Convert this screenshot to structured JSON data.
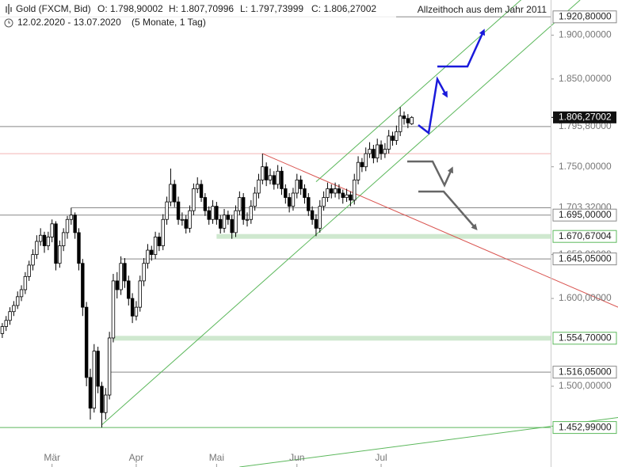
{
  "chart_data": {
    "type": "candlestick",
    "title": "Gold (FXCM, Bid)",
    "ohlc_labels": [
      "O: 1.798,90002",
      "H: 1.807,70996",
      "L: 1.797,73999",
      "C: 1.806,27002"
    ],
    "subtitle": "12.02.2020 - 13.07.2020",
    "period": "(5 Monate, 1 Tag)",
    "annotation": "Allzeithoch aus dem Jahr 2011",
    "categories": [
      null,
      null,
      null,
      null,
      null,
      null,
      null,
      null,
      null,
      null,
      null,
      null,
      null,
      "Mär",
      null,
      null,
      null,
      null,
      null,
      null,
      null,
      null,
      null,
      null,
      null,
      null,
      null,
      null,
      null,
      null,
      null,
      null,
      null,
      null,
      null,
      "Apr",
      null,
      null,
      null,
      null,
      null,
      null,
      null,
      null,
      null,
      null,
      null,
      null,
      null,
      null,
      null,
      null,
      null,
      null,
      null,
      null,
      "Mai",
      null,
      null,
      null,
      null,
      null,
      null,
      null,
      null,
      null,
      null,
      null,
      null,
      null,
      null,
      null,
      null,
      null,
      null,
      null,
      null,
      "Jun",
      null,
      null,
      null,
      null,
      null,
      null,
      null,
      null,
      null,
      null,
      null,
      null,
      null,
      null,
      null,
      null,
      null,
      null,
      null,
      null,
      null,
      "Jul",
      null,
      null,
      null,
      null,
      null,
      null,
      null,
      null
    ],
    "candles": [
      [
        1560,
        1572,
        1555,
        1568
      ],
      [
        1568,
        1580,
        1563,
        1575
      ],
      [
        1575,
        1590,
        1570,
        1585
      ],
      [
        1585,
        1597,
        1580,
        1592
      ],
      [
        1592,
        1608,
        1588,
        1602
      ],
      [
        1602,
        1615,
        1597,
        1610
      ],
      [
        1610,
        1630,
        1605,
        1625
      ],
      [
        1625,
        1643,
        1620,
        1638
      ],
      [
        1638,
        1656,
        1632,
        1650
      ],
      [
        1650,
        1672,
        1645,
        1665
      ],
      [
        1665,
        1680,
        1660,
        1672
      ],
      [
        1672,
        1676,
        1652,
        1660
      ],
      [
        1660,
        1676,
        1655,
        1670
      ],
      [
        1670,
        1690,
        1664,
        1685
      ],
      [
        1685,
        1688,
        1632,
        1640
      ],
      [
        1640,
        1666,
        1635,
        1660
      ],
      [
        1660,
        1680,
        1654,
        1675
      ],
      [
        1675,
        1694,
        1668,
        1690
      ],
      [
        1690,
        1703.32,
        1684,
        1695
      ],
      [
        1695,
        1698,
        1668,
        1675
      ],
      [
        1675,
        1680,
        1632,
        1640
      ],
      [
        1640,
        1645,
        1580,
        1590
      ],
      [
        1590,
        1596,
        1500,
        1510
      ],
      [
        1510,
        1520,
        1462,
        1475
      ],
      [
        1475,
        1548,
        1470,
        1540
      ],
      [
        1540,
        1545,
        1492,
        1500
      ],
      [
        1500,
        1505,
        1452.99,
        1470
      ],
      [
        1470,
        1498,
        1462,
        1490
      ],
      [
        1490,
        1562,
        1485,
        1555
      ],
      [
        1555,
        1628,
        1550,
        1620
      ],
      [
        1620,
        1630,
        1600,
        1610
      ],
      [
        1610,
        1648,
        1604,
        1640
      ],
      [
        1640,
        1646,
        1612,
        1620
      ],
      [
        1620,
        1626,
        1592,
        1600
      ],
      [
        1600,
        1606,
        1572,
        1580
      ],
      [
        1580,
        1597,
        1575,
        1590
      ],
      [
        1590,
        1626,
        1585,
        1620
      ],
      [
        1620,
        1646,
        1614,
        1640
      ],
      [
        1640,
        1662,
        1634,
        1655
      ],
      [
        1655,
        1660,
        1643,
        1650
      ],
      [
        1650,
        1676,
        1645,
        1670
      ],
      [
        1670,
        1675,
        1654,
        1660
      ],
      [
        1660,
        1696,
        1655,
        1690
      ],
      [
        1690,
        1716,
        1684,
        1710
      ],
      [
        1710,
        1748,
        1705,
        1730
      ],
      [
        1730,
        1735,
        1704,
        1710
      ],
      [
        1710,
        1716,
        1684,
        1690
      ],
      [
        1690,
        1698,
        1683,
        1690
      ],
      [
        1690,
        1695,
        1674,
        1680
      ],
      [
        1680,
        1706,
        1675,
        1700
      ],
      [
        1700,
        1731,
        1695,
        1725
      ],
      [
        1725,
        1738,
        1720,
        1730
      ],
      [
        1730,
        1735,
        1710,
        1715
      ],
      [
        1715,
        1720,
        1694,
        1700
      ],
      [
        1700,
        1705,
        1684,
        1690
      ],
      [
        1690,
        1712,
        1685,
        1705
      ],
      [
        1705,
        1710,
        1684,
        1690
      ],
      [
        1690,
        1695,
        1674,
        1680
      ],
      [
        1680,
        1702,
        1675,
        1695
      ],
      [
        1695,
        1700,
        1684,
        1690
      ],
      [
        1690,
        1695,
        1668,
        1675
      ],
      [
        1675,
        1706,
        1670,
        1700
      ],
      [
        1700,
        1722,
        1695,
        1715
      ],
      [
        1715,
        1720,
        1684,
        1690
      ],
      [
        1690,
        1698,
        1682,
        1690
      ],
      [
        1690,
        1712,
        1685,
        1705
      ],
      [
        1705,
        1727,
        1700,
        1720
      ],
      [
        1720,
        1742,
        1714,
        1735
      ],
      [
        1735,
        1765,
        1730,
        1750
      ],
      [
        1750,
        1755,
        1728,
        1735
      ],
      [
        1735,
        1748,
        1730,
        1740
      ],
      [
        1740,
        1745,
        1724,
        1730
      ],
      [
        1730,
        1752,
        1725,
        1745
      ],
      [
        1745,
        1750,
        1718,
        1725
      ],
      [
        1725,
        1730,
        1708,
        1715
      ],
      [
        1715,
        1720,
        1698,
        1705
      ],
      [
        1705,
        1726,
        1700,
        1720
      ],
      [
        1720,
        1742,
        1714,
        1735
      ],
      [
        1735,
        1740,
        1718,
        1725
      ],
      [
        1725,
        1730,
        1708,
        1715
      ],
      [
        1715,
        1720,
        1694,
        1700
      ],
      [
        1700,
        1705,
        1684,
        1690
      ],
      [
        1690,
        1696,
        1671,
        1680
      ],
      [
        1680,
        1712,
        1675,
        1705
      ],
      [
        1705,
        1722,
        1700,
        1715
      ],
      [
        1715,
        1732,
        1710,
        1725
      ],
      [
        1725,
        1730,
        1714,
        1720
      ],
      [
        1720,
        1732,
        1715,
        1725
      ],
      [
        1725,
        1730,
        1713,
        1720
      ],
      [
        1720,
        1724,
        1708,
        1715
      ],
      [
        1715,
        1725,
        1710,
        1718
      ],
      [
        1718,
        1722,
        1705,
        1712
      ],
      [
        1712,
        1742,
        1707,
        1735
      ],
      [
        1735,
        1762,
        1730,
        1755
      ],
      [
        1755,
        1760,
        1744,
        1750
      ],
      [
        1750,
        1772,
        1745,
        1765
      ],
      [
        1765,
        1778,
        1760,
        1770
      ],
      [
        1770,
        1775,
        1754,
        1760
      ],
      [
        1760,
        1782,
        1755,
        1775
      ],
      [
        1775,
        1780,
        1758,
        1765
      ],
      [
        1765,
        1777,
        1760,
        1770
      ],
      [
        1770,
        1792,
        1765,
        1785
      ],
      [
        1785,
        1790,
        1774,
        1780
      ],
      [
        1780,
        1797,
        1775,
        1790
      ],
      [
        1790,
        1818,
        1785,
        1808
      ],
      [
        1808,
        1813,
        1798,
        1805
      ],
      [
        1805,
        1810,
        1794,
        1800
      ],
      [
        1798.90002,
        1807.70996,
        1797.73999,
        1806.27002
      ]
    ],
    "xlim": [
      -0.6,
      143.3
    ],
    "ylim": [
      1408,
      1940
    ],
    "yticks": [
      {
        "value": 1900,
        "label": "1.900,00000"
      },
      {
        "value": 1850,
        "label": "1.850,00000"
      },
      {
        "value": 1750,
        "label": "1.750,00000"
      },
      {
        "value": 1650,
        "label": "1.650,00000"
      },
      {
        "value": 1600,
        "label": "1.600,00000"
      },
      {
        "value": 1500,
        "label": "1.500,00000"
      }
    ],
    "levels": [
      {
        "value": 1920.8,
        "label": "1.920,80000",
        "from": -0.6,
        "style": "boxed",
        "color": "#888888"
      },
      {
        "value": 1795.8,
        "label": "1.795,80000",
        "from": -0.6,
        "style": "line",
        "color": "#888888"
      },
      {
        "value": 1765,
        "from": -0.6,
        "style": "line",
        "color": "#f4b4b4"
      },
      {
        "value": 1703.32,
        "label": "1.703,32000",
        "from": 18,
        "style": "line",
        "color": "#888888"
      },
      {
        "value": 1695,
        "label": "1.695,00000",
        "from": -0.6,
        "style": "boxed",
        "color": "#888888"
      },
      {
        "value": 1670.67004,
        "label": "1.670,67004",
        "from": 56,
        "style": "band",
        "color": "#cfe8cf"
      },
      {
        "value": 1645.05,
        "label": "1.645,05000",
        "from": 31,
        "style": "boxed",
        "color": "#888888"
      },
      {
        "value": 1554.7,
        "label": "1.554,70000",
        "from": 29,
        "style": "band",
        "color": "#cfe8cf"
      },
      {
        "value": 1516.05,
        "label": "1.516,05000",
        "from": 28,
        "style": "boxed",
        "color": "#888888"
      },
      {
        "value": 1452.99,
        "label": "1.452,99000",
        "from": -0.6,
        "style": "boxed",
        "color": "#5cb85c"
      }
    ],
    "last_label": "1.806,27002",
    "last_value": 1806.27002,
    "trendlines": [
      {
        "x": [
          26,
          151
        ],
        "y": [
          1456,
          1940
        ],
        "color": "#5cb85c"
      },
      {
        "x": [
          82,
          150
        ],
        "y": [
          1733,
          1996
        ],
        "color": "#5cb85c"
      },
      {
        "x": [
          62,
          162
        ],
        "y": [
          1408,
          1465
        ],
        "color": "#5cb85c"
      },
      {
        "x": [
          68,
          162
        ],
        "y": [
          1765,
          1588
        ],
        "color": "#d9534f"
      }
    ],
    "up_color": "#ffffff",
    "down_color": "#000000"
  }
}
